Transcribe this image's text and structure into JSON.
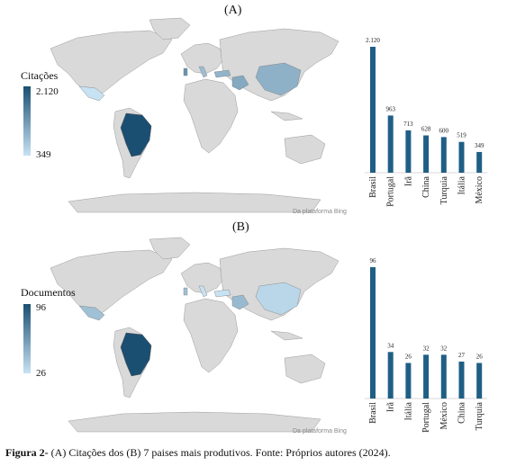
{
  "figure": {
    "panel_a_label": "(A)",
    "panel_b_label": "(B)",
    "caption_bold": "Figura 2-",
    "caption_text": " (A) Citações dos (B) 7 paises mais produtivos. Fonte: Próprios autores (2024).",
    "map_credit": "Da plataforma Bing"
  },
  "colors": {
    "bar": "#1f5f85",
    "land": "#d9d9d9",
    "border": "#999999",
    "scale_high": "#1b4f72",
    "scale_low": "#c7e2f3"
  },
  "chart_data": [
    {
      "type": "map",
      "legend_title": "Citações",
      "scale_max": "2.120",
      "scale_min": "349",
      "regions": [
        {
          "country": "Brasil",
          "value": 2120
        },
        {
          "country": "Portugal",
          "value": 963
        },
        {
          "country": "Irã",
          "value": 713
        },
        {
          "country": "China",
          "value": 628
        },
        {
          "country": "Turquia",
          "value": 600
        },
        {
          "country": "Itália",
          "value": 519
        },
        {
          "country": "México",
          "value": 349
        }
      ]
    },
    {
      "type": "bar",
      "categories": [
        "Brasil",
        "Portugal",
        "Irã",
        "China",
        "Turquia",
        "Itália",
        "México"
      ],
      "values": [
        2120,
        963,
        713,
        628,
        600,
        519,
        349
      ],
      "labels": [
        "2.120",
        "963",
        "713",
        "628",
        "600",
        "519",
        "349"
      ],
      "ylim": [
        0,
        2120
      ]
    },
    {
      "type": "map",
      "legend_title": "Documentos",
      "scale_max": "96",
      "scale_min": "26",
      "regions": [
        {
          "country": "Brasil",
          "value": 96
        },
        {
          "country": "Irã",
          "value": 34
        },
        {
          "country": "Itália",
          "value": 26
        },
        {
          "country": "Portugal",
          "value": 32
        },
        {
          "country": "México",
          "value": 32
        },
        {
          "country": "China",
          "value": 27
        },
        {
          "country": "Turquia",
          "value": 26
        }
      ]
    },
    {
      "type": "bar",
      "categories": [
        "Brasil",
        "Irã",
        "Itália",
        "Portugal",
        "México",
        "China",
        "Turquia"
      ],
      "values": [
        96,
        34,
        26,
        32,
        32,
        27,
        26
      ],
      "labels": [
        "96",
        "34",
        "26",
        "32",
        "32",
        "27",
        "26"
      ],
      "ylim": [
        0,
        96
      ]
    }
  ]
}
